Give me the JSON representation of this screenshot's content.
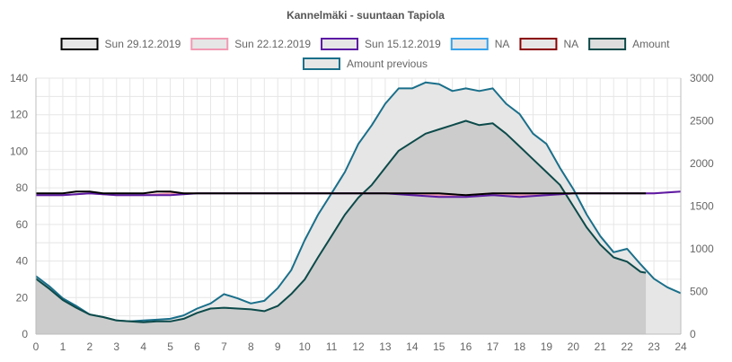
{
  "chart_data": {
    "type": "line",
    "title": "Kannelmäki - suuntaan Tapiola",
    "x_ticks": [
      "0",
      "1",
      "2",
      "3",
      "4",
      "5",
      "6",
      "7",
      "8",
      "9",
      "10",
      "11",
      "12",
      "13",
      "14",
      "15",
      "16",
      "17",
      "18",
      "19",
      "20",
      "21",
      "22",
      "23",
      "24"
    ],
    "xlim": [
      0,
      24
    ],
    "y_left": {
      "min": 0,
      "max": 140,
      "ticks": [
        "0",
        "20",
        "40",
        "60",
        "80",
        "100",
        "120",
        "140"
      ]
    },
    "y_right": {
      "min": 0,
      "max": 3000,
      "ticks": [
        "0",
        "500",
        "1000",
        "1500",
        "2000",
        "2500",
        "3000"
      ]
    },
    "grid": true,
    "legend_position": "top",
    "legend": [
      {
        "label": "Sun 29.12.2019",
        "stroke": "#000000",
        "fill": "#e6e6e6"
      },
      {
        "label": "Sun 22.12.2019",
        "stroke": "#f29ab3",
        "fill": "#e6e6e6"
      },
      {
        "label": "Sun 15.12.2019",
        "stroke": "#5c1aa3",
        "fill": "#e6e6e6"
      },
      {
        "label": "NA",
        "stroke": "#36a2eb",
        "fill": "#e6e6e6"
      },
      {
        "label": "NA",
        "stroke": "#8b0000",
        "fill": "#e6e6e6"
      },
      {
        "label": "Amount",
        "stroke": "#0d4a4a",
        "fill": "#dddddd"
      },
      {
        "label": "Amount previous",
        "stroke": "#1a6f8a",
        "fill": "#e6e6e6"
      }
    ],
    "series": [
      {
        "name": "Amount previous",
        "axis": "right",
        "color": "#1a6f8a",
        "fill": "#e6e6e6",
        "area": true,
        "x": [
          0,
          0.5,
          1,
          1.5,
          2,
          2.5,
          3,
          3.5,
          4,
          4.5,
          5,
          5.5,
          6,
          6.5,
          7,
          7.5,
          8,
          8.5,
          9,
          9.5,
          10,
          10.5,
          11,
          11.5,
          12,
          12.5,
          13,
          13.5,
          14,
          14.5,
          15,
          15.5,
          16,
          16.5,
          17,
          17.5,
          18,
          18.5,
          19,
          19.5,
          20,
          20.5,
          21,
          21.5,
          22,
          22.5,
          23,
          23.5,
          24
        ],
        "y": [
          680,
          560,
          420,
          330,
          230,
          200,
          160,
          150,
          160,
          170,
          180,
          220,
          300,
          360,
          470,
          420,
          360,
          390,
          540,
          750,
          1100,
          1400,
          1650,
          1900,
          2230,
          2450,
          2700,
          2880,
          2880,
          2950,
          2930,
          2850,
          2880,
          2850,
          2880,
          2700,
          2580,
          2350,
          2230,
          1950,
          1700,
          1400,
          1150,
          960,
          1000,
          820,
          650,
          550,
          480
        ]
      },
      {
        "name": "Amount",
        "axis": "right",
        "color": "#0d4a4a",
        "fill": "#cccccc",
        "area": true,
        "x": [
          0,
          0.5,
          1,
          1.5,
          2,
          2.5,
          3,
          3.5,
          4,
          4.5,
          5,
          5.5,
          6,
          6.5,
          7,
          7.5,
          8,
          8.5,
          9,
          9.5,
          10,
          10.5,
          11,
          11.5,
          12,
          12.5,
          13,
          13.5,
          14,
          14.5,
          15,
          15.5,
          16,
          16.5,
          17,
          17.5,
          18,
          18.5,
          19,
          19.5,
          20,
          20.5,
          21,
          21.5,
          22,
          22.5,
          22.7
        ],
        "y": [
          650,
          530,
          400,
          310,
          230,
          200,
          160,
          150,
          140,
          150,
          150,
          180,
          250,
          300,
          310,
          300,
          290,
          270,
          330,
          470,
          640,
          900,
          1150,
          1400,
          1600,
          1750,
          1950,
          2150,
          2250,
          2350,
          2400,
          2450,
          2500,
          2450,
          2470,
          2350,
          2200,
          2050,
          1900,
          1750,
          1500,
          1250,
          1050,
          900,
          850,
          730,
          720
        ]
      },
      {
        "name": "Sun 22.12.2019",
        "axis": "left",
        "color": "#f29ab3",
        "x": [
          0,
          1,
          2,
          3,
          4,
          5,
          6,
          7,
          8,
          9,
          10,
          11,
          12,
          13,
          14,
          15,
          16,
          17,
          18,
          19,
          20,
          21,
          22,
          23,
          24
        ],
        "y": [
          76,
          76,
          77,
          76,
          76,
          77,
          77,
          77,
          77,
          77,
          77,
          77,
          77,
          77,
          77,
          76,
          76,
          77,
          76,
          76,
          77,
          77,
          77,
          77,
          78
        ]
      },
      {
        "name": "Sun 15.12.2019",
        "axis": "left",
        "color": "#5c1aa3",
        "x": [
          0,
          1,
          2,
          3,
          4,
          5,
          6,
          7,
          8,
          9,
          10,
          11,
          12,
          13,
          14,
          15,
          16,
          17,
          18,
          19,
          20,
          21,
          22,
          23,
          24
        ],
        "y": [
          76,
          76,
          77,
          76,
          76,
          76,
          77,
          77,
          77,
          77,
          77,
          77,
          77,
          77,
          76,
          75,
          75,
          76,
          75,
          76,
          77,
          77,
          77,
          77,
          78
        ]
      },
      {
        "name": "Sun 29.12.2019",
        "axis": "left",
        "color": "#000000",
        "x": [
          0,
          0.5,
          1,
          1.5,
          2,
          2.5,
          3,
          3.5,
          4,
          4.5,
          5,
          5.5,
          6,
          7,
          8,
          9,
          10,
          11,
          12,
          13,
          14,
          15,
          16,
          17,
          18,
          19,
          20,
          21,
          22,
          22.7
        ],
        "y": [
          77,
          77,
          77,
          78,
          78,
          77,
          77,
          77,
          77,
          78,
          78,
          77,
          77,
          77,
          77,
          77,
          77,
          77,
          77,
          77,
          77,
          77,
          76,
          77,
          77,
          77,
          77,
          77,
          77,
          77
        ]
      }
    ]
  }
}
